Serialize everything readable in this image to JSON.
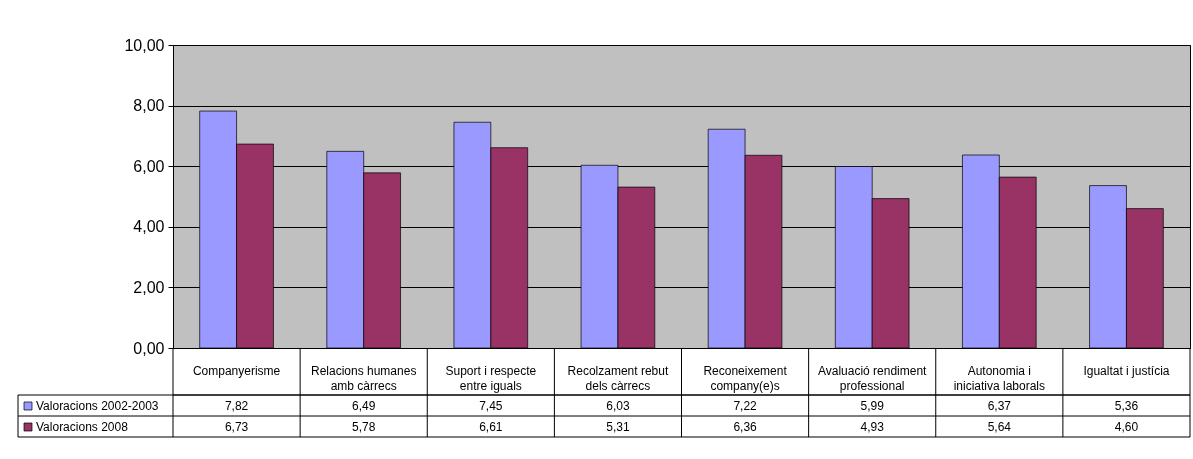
{
  "chart_data": {
    "type": "bar",
    "categories": [
      "Companyerisme",
      "Relacions humanes amb càrrecs",
      "Suport i respecte entre iguals",
      "Recolzament  rebut dels càrrecs",
      "Reconeixement company(e)s",
      "Avaluació rendiment professional",
      "Autonomia i iniciativa laborals",
      "Igualtat i justícia"
    ],
    "series": [
      {
        "name": "Valoracions 2002-2003",
        "color": "#9999ff",
        "values": [
          7.82,
          6.49,
          7.45,
          6.03,
          7.22,
          5.99,
          6.37,
          5.36
        ],
        "value_labels": [
          "7,82",
          "6,49",
          "7,45",
          "6,03",
          "7,22",
          "5,99",
          "6,37",
          "5,36"
        ]
      },
      {
        "name": "Valoracions 2008",
        "color": "#993366",
        "values": [
          6.73,
          5.78,
          6.61,
          5.31,
          6.36,
          4.93,
          5.64,
          4.6
        ],
        "value_labels": [
          "6,73",
          "5,78",
          "6,61",
          "5,31",
          "6,36",
          "4,93",
          "5,64",
          "4,60"
        ]
      }
    ],
    "ylim": [
      0,
      10
    ],
    "yticks": [
      {
        "value": 0,
        "label": "0,00"
      },
      {
        "value": 2,
        "label": "2,00"
      },
      {
        "value": 4,
        "label": "4,00"
      },
      {
        "value": 6,
        "label": "6,00"
      },
      {
        "value": 8,
        "label": "8,00"
      },
      {
        "value": 10,
        "label": "10,00"
      }
    ],
    "grid": "y",
    "legend": "bottom"
  }
}
